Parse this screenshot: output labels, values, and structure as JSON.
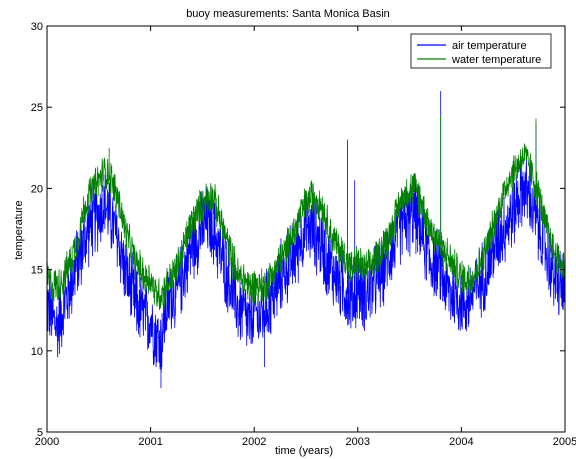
{
  "chart_data": {
    "type": "line",
    "title": "buoy measurements:  Santa Monica Basin",
    "xlabel": "time (years)",
    "ylabel": "temperature",
    "xlim": [
      2000,
      2005
    ],
    "ylim": [
      5,
      30
    ],
    "xticks": [
      2000,
      2001,
      2002,
      2003,
      2004,
      2005
    ],
    "yticks": [
      5,
      10,
      15,
      20,
      25,
      30
    ],
    "grid": false,
    "legend_position": "top-right",
    "series": [
      {
        "name": "air temperature",
        "color": "#0000ff",
        "x": [
          2000.0,
          2000.05,
          2000.1,
          2000.15,
          2000.2,
          2000.25,
          2000.3,
          2000.35,
          2000.4,
          2000.45,
          2000.5,
          2000.55,
          2000.6,
          2000.65,
          2000.7,
          2000.75,
          2000.8,
          2000.85,
          2000.9,
          2000.95,
          2001.0,
          2001.05,
          2001.1,
          2001.15,
          2001.2,
          2001.25,
          2001.3,
          2001.35,
          2001.4,
          2001.45,
          2001.5,
          2001.55,
          2001.6,
          2001.65,
          2001.7,
          2001.75,
          2001.8,
          2001.85,
          2001.9,
          2001.95,
          2002.0,
          2002.05,
          2002.1,
          2002.15,
          2002.2,
          2002.25,
          2002.3,
          2002.35,
          2002.4,
          2002.45,
          2002.5,
          2002.55,
          2002.6,
          2002.65,
          2002.7,
          2002.75,
          2002.8,
          2002.85,
          2002.9,
          2002.95,
          2003.0,
          2003.05,
          2003.1,
          2003.15,
          2003.2,
          2003.25,
          2003.3,
          2003.35,
          2003.4,
          2003.45,
          2003.5,
          2003.55,
          2003.6,
          2003.65,
          2003.7,
          2003.75,
          2003.8,
          2003.85,
          2003.9,
          2003.95,
          2004.0,
          2004.05,
          2004.1,
          2004.15,
          2004.2,
          2004.25,
          2004.3,
          2004.35,
          2004.4,
          2004.45,
          2004.5,
          2004.55,
          2004.6,
          2004.65,
          2004.7,
          2004.75,
          2004.8,
          2004.85,
          2004.9,
          2004.95,
          2005.0
        ],
        "y": [
          13.0,
          12.0,
          11.5,
          12.5,
          13.5,
          14.5,
          15.5,
          16.5,
          17.5,
          18.0,
          18.5,
          19.0,
          18.5,
          17.5,
          16.5,
          15.0,
          14.0,
          13.0,
          12.5,
          12.0,
          12.0,
          11.0,
          10.5,
          12.5,
          13.5,
          13.5,
          14.5,
          15.5,
          16.5,
          17.0,
          17.5,
          18.0,
          17.5,
          16.5,
          15.5,
          14.5,
          13.5,
          12.5,
          12.5,
          11.5,
          12.5,
          12.0,
          12.5,
          13.0,
          13.5,
          14.5,
          15.0,
          15.5,
          16.0,
          17.0,
          17.5,
          17.5,
          17.0,
          16.5,
          15.5,
          15.0,
          14.5,
          14.0,
          13.5,
          13.0,
          14.0,
          13.5,
          13.5,
          14.0,
          14.5,
          15.0,
          16.0,
          16.5,
          17.5,
          18.0,
          18.0,
          18.5,
          17.5,
          16.5,
          15.5,
          15.5,
          15.0,
          14.0,
          13.5,
          13.5,
          13.0,
          13.0,
          13.5,
          14.0,
          14.5,
          15.0,
          16.0,
          17.0,
          17.5,
          18.0,
          18.5,
          19.5,
          20.0,
          19.5,
          18.5,
          17.5,
          16.5,
          15.5,
          14.5,
          14.0,
          14.0
        ],
        "annotations": [
          [
            2003.8,
            26.0
          ],
          [
            2002.9,
            23.0
          ],
          [
            2004.72,
            24.0
          ],
          [
            2001.1,
            7.7
          ],
          [
            2002.1,
            9.0
          ],
          [
            2002.97,
            20.5
          ]
        ]
      },
      {
        "name": "water temperature",
        "color": "#008000",
        "x": [
          2000.0,
          2000.05,
          2000.1,
          2000.15,
          2000.2,
          2000.25,
          2000.3,
          2000.35,
          2000.4,
          2000.45,
          2000.5,
          2000.55,
          2000.6,
          2000.65,
          2000.7,
          2000.75,
          2000.8,
          2000.85,
          2000.9,
          2000.95,
          2001.0,
          2001.05,
          2001.1,
          2001.15,
          2001.2,
          2001.25,
          2001.3,
          2001.35,
          2001.4,
          2001.45,
          2001.5,
          2001.55,
          2001.6,
          2001.65,
          2001.7,
          2001.75,
          2001.8,
          2001.85,
          2001.9,
          2001.95,
          2002.0,
          2002.05,
          2002.1,
          2002.15,
          2002.2,
          2002.25,
          2002.3,
          2002.35,
          2002.4,
          2002.45,
          2002.5,
          2002.55,
          2002.6,
          2002.65,
          2002.7,
          2002.75,
          2002.8,
          2002.85,
          2002.9,
          2002.95,
          2003.0,
          2003.05,
          2003.1,
          2003.15,
          2003.2,
          2003.25,
          2003.3,
          2003.35,
          2003.4,
          2003.45,
          2003.5,
          2003.55,
          2003.6,
          2003.65,
          2003.7,
          2003.75,
          2003.8,
          2003.85,
          2003.9,
          2003.95,
          2004.0,
          2004.05,
          2004.1,
          2004.15,
          2004.2,
          2004.25,
          2004.3,
          2004.35,
          2004.4,
          2004.45,
          2004.5,
          2004.55,
          2004.6,
          2004.65,
          2004.7,
          2004.75,
          2004.8,
          2004.85,
          2004.9,
          2004.95,
          2005.0
        ],
        "y": [
          14.5,
          14.0,
          14.0,
          14.5,
          15.0,
          16.0,
          17.0,
          18.5,
          19.5,
          20.0,
          20.5,
          21.0,
          21.0,
          20.0,
          19.0,
          17.5,
          16.5,
          15.5,
          15.0,
          14.5,
          14.5,
          13.5,
          13.5,
          14.0,
          14.5,
          15.0,
          16.0,
          17.0,
          18.0,
          18.5,
          19.0,
          19.5,
          19.5,
          18.5,
          17.5,
          16.5,
          15.5,
          14.5,
          14.5,
          14.0,
          14.0,
          14.0,
          14.0,
          14.5,
          15.0,
          15.5,
          16.0,
          17.0,
          17.5,
          18.5,
          19.0,
          19.5,
          19.5,
          19.0,
          18.0,
          17.0,
          16.5,
          16.0,
          15.5,
          15.0,
          15.5,
          15.0,
          15.0,
          15.5,
          16.0,
          16.5,
          17.0,
          18.0,
          19.0,
          19.5,
          20.0,
          20.0,
          19.5,
          18.5,
          17.5,
          17.0,
          16.5,
          16.0,
          15.5,
          15.0,
          14.5,
          14.5,
          14.5,
          15.0,
          15.5,
          16.5,
          17.5,
          18.5,
          19.5,
          20.5,
          21.0,
          21.5,
          22.0,
          21.5,
          20.5,
          19.5,
          18.0,
          17.0,
          16.0,
          15.5,
          15.0
        ],
        "annotations": [
          [
            2003.8,
            24.5
          ],
          [
            2004.72,
            24.3
          ],
          [
            2000.6,
            22.5
          ]
        ]
      }
    ]
  }
}
